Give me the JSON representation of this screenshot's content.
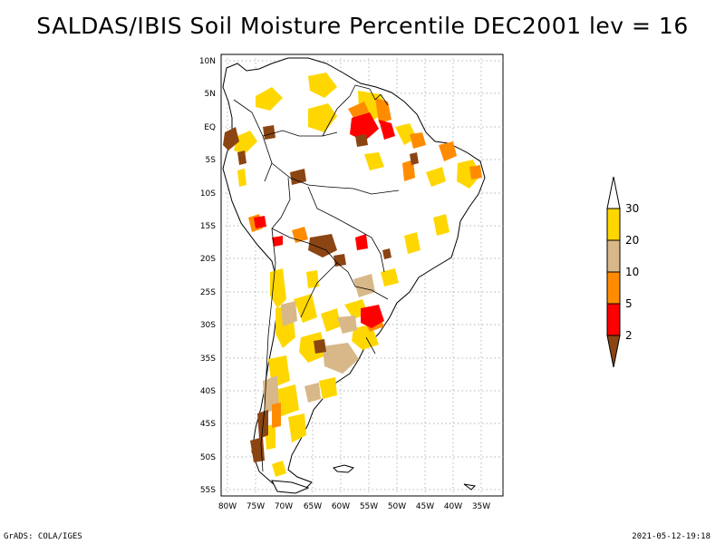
{
  "title": "SALDAS/IBIS Soil Moisture Percentile DEC2001 lev = 16",
  "footer": {
    "left": "GrADS: COLA/IGES",
    "right": "2021-05-12-19:18"
  },
  "map": {
    "lat_labels": [
      "10N",
      "5N",
      "EQ",
      "5S",
      "10S",
      "15S",
      "20S",
      "25S",
      "30S",
      "35S",
      "40S",
      "45S",
      "50S",
      "55S"
    ],
    "lon_labels": [
      "80W",
      "75W",
      "70W",
      "65W",
      "60W",
      "55W",
      "50W",
      "45W",
      "40W",
      "35W"
    ],
    "lat_range": [
      10,
      -55
    ],
    "lon_range": [
      -80,
      -35
    ],
    "grid": "dotted"
  },
  "legend": {
    "labels": [
      "30",
      "20",
      "10",
      "5",
      "2"
    ],
    "colors": [
      "#ffd700",
      "#d8b888",
      "#ff8c00",
      "#ff0000",
      "#8b4513"
    ],
    "top_color": "#ffffff"
  },
  "colors": {
    "yellow": "#ffd700",
    "tan": "#d8b888",
    "orange": "#ff8c00",
    "red": "#ff0000",
    "brown": "#8b4513"
  }
}
